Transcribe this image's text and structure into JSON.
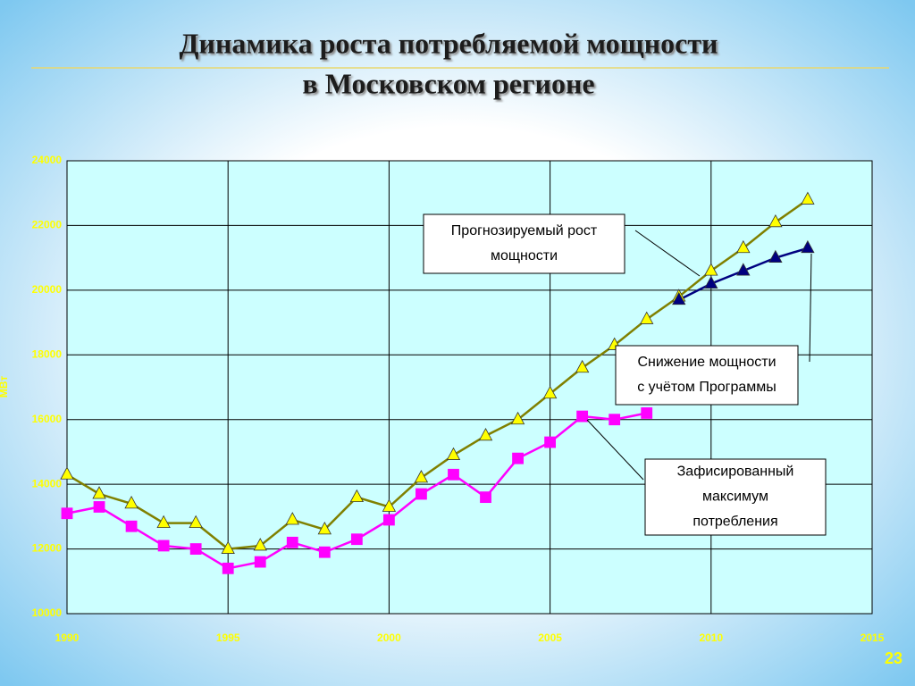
{
  "chart_data": {
    "type": "line",
    "title": "Динамика роста потребляемой мощности",
    "subtitle": "в Московском регионе",
    "ylabel": "МВт",
    "page_number": "23",
    "xlim": [
      1990,
      2015
    ],
    "xticks": [
      1990,
      1995,
      2000,
      2005,
      2010,
      2015
    ],
    "ylim": [
      10000,
      24000
    ],
    "yticks": [
      10000,
      12000,
      14000,
      16000,
      18000,
      20000,
      22000,
      24000
    ],
    "grid": true,
    "series": [
      {
        "color": "#808000",
        "marker": "triangle",
        "marker_color": "#ffff00",
        "x": [
          1990,
          1991,
          1992,
          1993,
          1994,
          1995,
          1996,
          1997,
          1998,
          1999,
          2000,
          2001,
          2002,
          2003,
          2004,
          2005,
          2006,
          2007,
          2008,
          2009,
          2010,
          2011,
          2012,
          2013
        ],
        "values": [
          14300,
          13700,
          13400,
          12800,
          12800,
          12000,
          12100,
          12900,
          12600,
          13600,
          13300,
          14200,
          14900,
          15500,
          16000,
          16800,
          17600,
          18300,
          19100,
          19800,
          20600,
          21300,
          22100,
          22800
        ]
      },
      {
        "color": "#ff00ff",
        "marker": "square",
        "marker_color": "#ff00ff",
        "x": [
          1990,
          1991,
          1992,
          1993,
          1994,
          1995,
          1996,
          1997,
          1998,
          1999,
          2000,
          2001,
          2002,
          2003,
          2004,
          2005,
          2006,
          2007,
          2008
        ],
        "values": [
          13100,
          13300,
          12700,
          12100,
          12000,
          11400,
          11600,
          12200,
          11900,
          12300,
          12900,
          13700,
          14300,
          13600,
          14800,
          15300,
          16100,
          16000,
          16200
        ]
      },
      {
        "color": "#000080",
        "marker": "triangle",
        "marker_color": "#000080",
        "x": [
          2009,
          2010,
          2011,
          2012,
          2013
        ],
        "values": [
          19700,
          20200,
          20600,
          21000,
          21300
        ]
      }
    ],
    "annotations": [
      {
        "lines": [
          "Прогнозируемый рост",
          "мощности"
        ]
      },
      {
        "lines": [
          "Снижение мощности",
          "с учётом Программы"
        ]
      },
      {
        "lines": [
          "Зафисированный",
          "максимум",
          "потребления"
        ]
      }
    ]
  }
}
